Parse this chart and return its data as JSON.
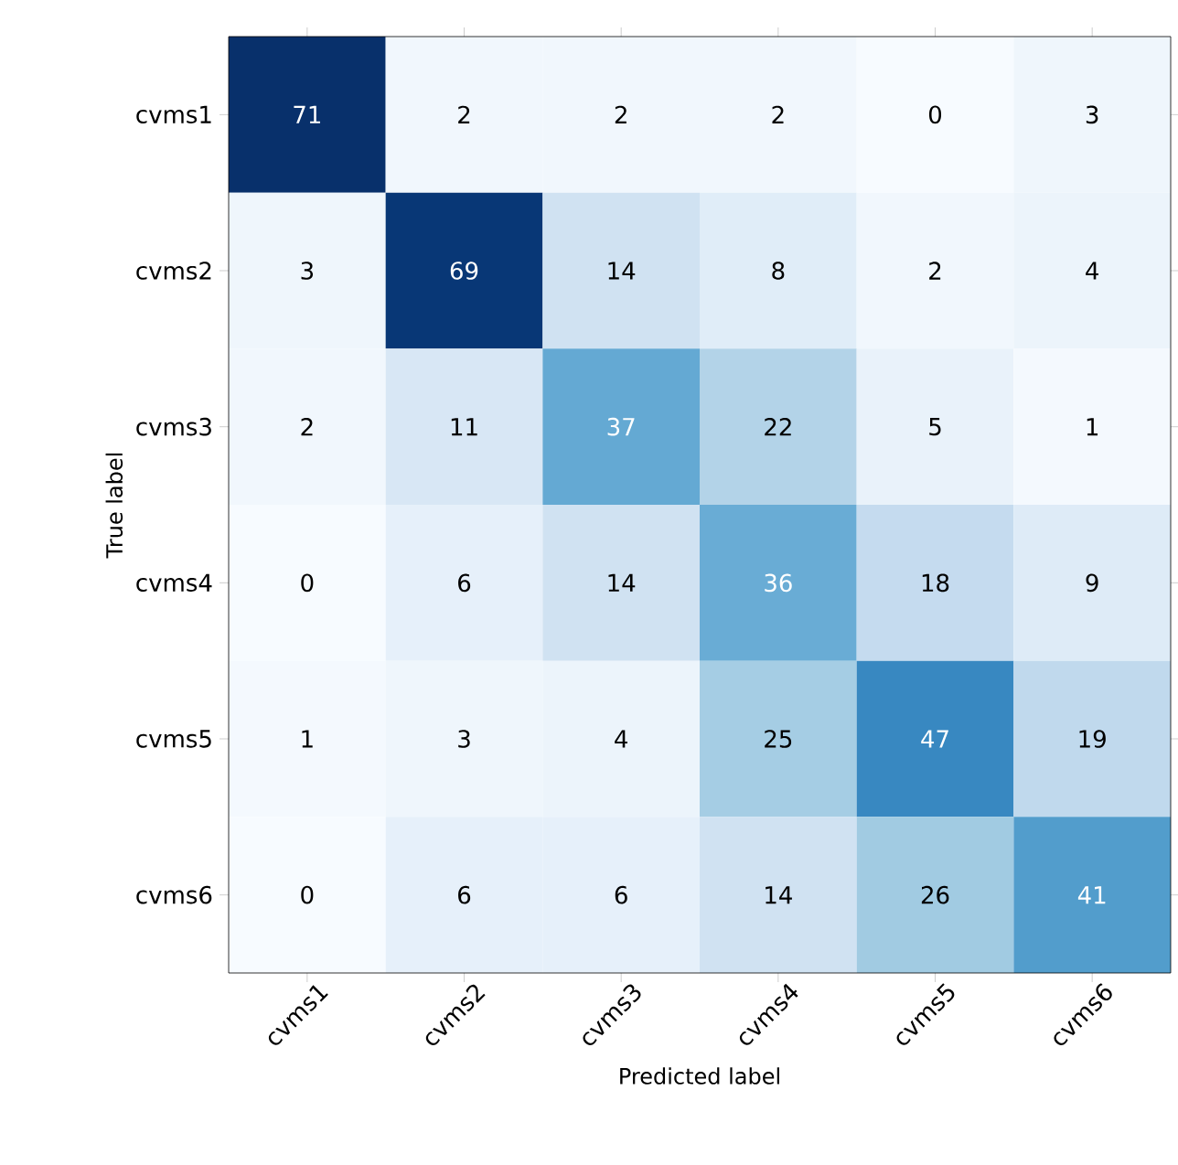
{
  "chart_data": {
    "type": "heatmap",
    "xlabel": "Predicted label",
    "ylabel": "True label",
    "data_labels": true,
    "categories": [
      "cvms1",
      "cvms2",
      "cvms3",
      "cvms4",
      "cvms5",
      "cvms6"
    ],
    "y_categories": [
      "cvms1",
      "cvms2",
      "cvms3",
      "cvms4",
      "cvms5",
      "cvms6"
    ],
    "cells": [
      [
        71,
        2,
        2,
        2,
        0,
        3
      ],
      [
        3,
        69,
        14,
        8,
        2,
        4
      ],
      [
        2,
        11,
        37,
        22,
        5,
        1
      ],
      [
        0,
        6,
        14,
        36,
        18,
        9
      ],
      [
        1,
        3,
        4,
        25,
        47,
        19
      ],
      [
        0,
        6,
        6,
        14,
        26,
        41
      ]
    ]
  }
}
